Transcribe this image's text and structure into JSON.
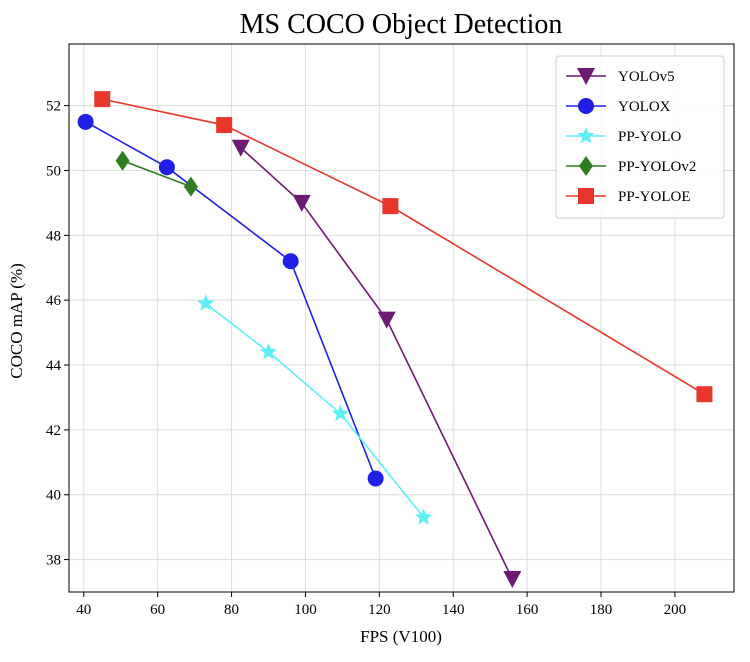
{
  "chart_data": {
    "type": "line",
    "title": "MS COCO Object Detection",
    "xlabel": "FPS (V100)",
    "ylabel": "COCO mAP (%)",
    "xlim": [
      36,
      216
    ],
    "ylim": [
      37,
      53.9
    ],
    "xticks": [
      40,
      60,
      80,
      100,
      120,
      140,
      160,
      180,
      200
    ],
    "yticks": [
      38,
      40,
      42,
      44,
      46,
      48,
      50,
      52
    ],
    "grid": true,
    "legend_position": "top-right",
    "series": [
      {
        "name": "YOLOv5",
        "color": "#6c1a72",
        "marker": "triangle-down",
        "points": [
          [
            82.5,
            50.7
          ],
          [
            99,
            49.0
          ],
          [
            122,
            45.4
          ],
          [
            156,
            37.4
          ]
        ]
      },
      {
        "name": "YOLOX",
        "color": "#1f1fe6",
        "marker": "circle",
        "points": [
          [
            40.5,
            51.5
          ],
          [
            62.5,
            50.1
          ],
          [
            96,
            47.2
          ],
          [
            119,
            40.5
          ]
        ]
      },
      {
        "name": "PP-YOLO",
        "color": "#5ef0f5",
        "marker": "star",
        "points": [
          [
            73,
            45.9
          ],
          [
            90,
            44.4
          ],
          [
            109.5,
            42.5
          ],
          [
            132,
            39.3
          ]
        ]
      },
      {
        "name": "PP-YOLOv2",
        "color": "#2e7d1e",
        "marker": "diamond",
        "points": [
          [
            50.5,
            50.3
          ],
          [
            69,
            49.5
          ]
        ]
      },
      {
        "name": "PP-YOLOE",
        "color": "#e8362a",
        "marker": "square",
        "points": [
          [
            45,
            52.2
          ],
          [
            78,
            51.4
          ],
          [
            123,
            48.9
          ],
          [
            208,
            43.1
          ]
        ]
      }
    ]
  }
}
